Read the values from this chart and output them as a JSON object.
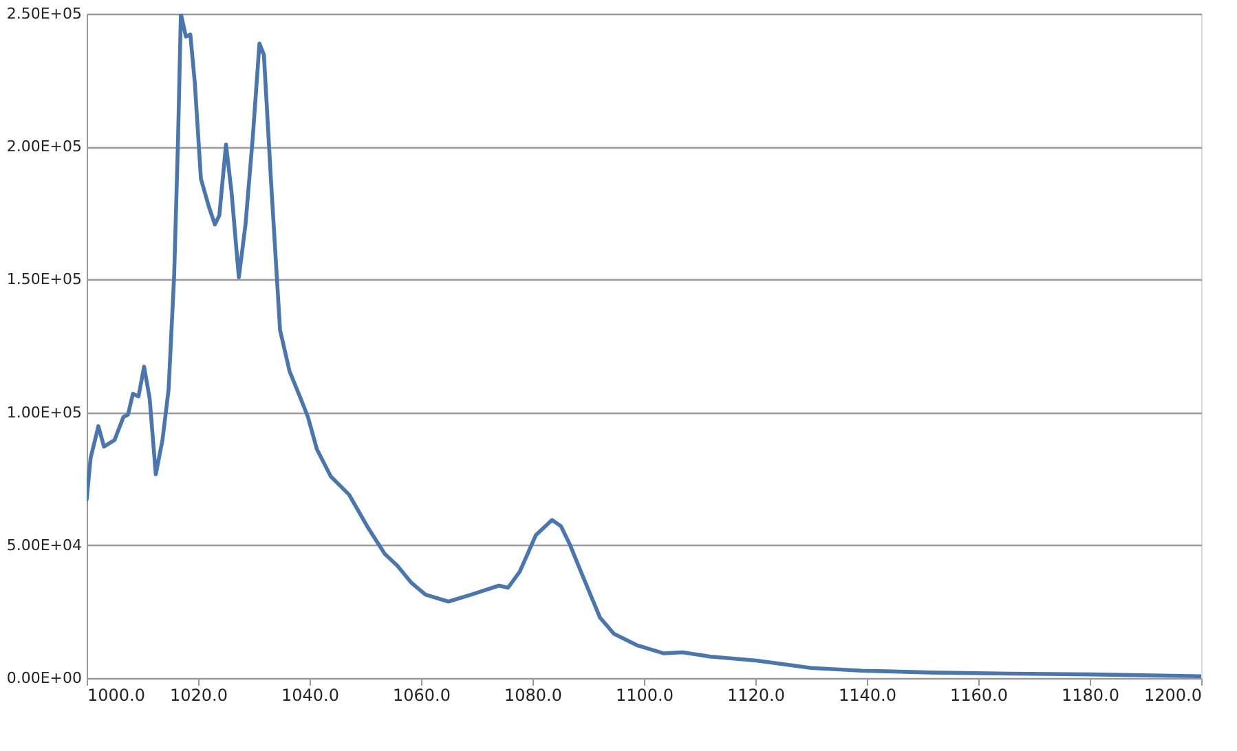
{
  "chart_data": {
    "type": "line",
    "x": [
      1000,
      1000.7,
      1002.1,
      1003.1,
      1005,
      1006.6,
      1007.4,
      1008.3,
      1009.3,
      1010.3,
      1011.3,
      1012.4,
      1013.6,
      1014.7,
      1015.7,
      1016.4,
      1016.9,
      1017.8,
      1018.6,
      1019.4,
      1020.5,
      1021.9,
      1023,
      1023.8,
      1025,
      1026,
      1027.3,
      1028.5,
      1029.8,
      1031,
      1031.8,
      1033.1,
      1034.7,
      1036.4,
      1038.4,
      1039.7,
      1041.3,
      1043.8,
      1047.1,
      1050.4,
      1053.5,
      1055.8,
      1058.3,
      1060.8,
      1064.9,
      1069,
      1074,
      1075.6,
      1077.7,
      1080.6,
      1083.5,
      1085.1,
      1086.7,
      1088.7,
      1092.1,
      1094.6,
      1098.7,
      1103.6,
      1106.9,
      1111.9,
      1120.2,
      1130,
      1139.1,
      1151.5,
      1165.5,
      1180.3,
      1200
    ],
    "series": [
      {
        "color": "#4a76b0",
        "values": [
          67200,
          82800,
          94800,
          87100,
          89600,
          98300,
          99100,
          107000,
          106000,
          117200,
          105200,
          76700,
          89600,
          108600,
          151700,
          203400,
          250000,
          241400,
          242200,
          224100,
          187900,
          177600,
          170700,
          174100,
          200800,
          182700,
          150800,
          170700,
          203400,
          238800,
          234500,
          186200,
          131000,
          115500,
          105200,
          98300,
          86200,
          75900,
          69000,
          56900,
          46700,
          42200,
          35800,
          31400,
          28800,
          31400,
          34800,
          34000,
          40000,
          53800,
          59500,
          57200,
          50300,
          40000,
          22800,
          16700,
          12400,
          9300,
          9700,
          8100,
          6600,
          3800,
          2800,
          2100,
          1700,
          1400,
          700
        ]
      }
    ],
    "xlim": [
      1000,
      1200
    ],
    "xticks": [
      {
        "value": 1000,
        "label": "1000.0"
      },
      {
        "value": 1020,
        "label": "1020.0"
      },
      {
        "value": 1040,
        "label": "1040.0"
      },
      {
        "value": 1060,
        "label": "1060.0"
      },
      {
        "value": 1080,
        "label": "1080.0"
      },
      {
        "value": 1100,
        "label": "1100.0"
      },
      {
        "value": 1120,
        "label": "1120.0"
      },
      {
        "value": 1140,
        "label": "1140.0"
      },
      {
        "value": 1160,
        "label": "1160.0"
      },
      {
        "value": 1180,
        "label": "1180.0"
      },
      {
        "value": 1200,
        "label": "1200.0"
      }
    ],
    "ylim": [
      0,
      250000
    ],
    "yticks": [
      {
        "value": 0,
        "label": "0.00E+00"
      },
      {
        "value": 50000,
        "label": "5.00E+04"
      },
      {
        "value": 100000,
        "label": "1.00E+05"
      },
      {
        "value": 150000,
        "label": "1.50E+05"
      },
      {
        "value": 200000,
        "label": "2.00E+05"
      },
      {
        "value": 250000,
        "label": "2.50E+05"
      }
    ],
    "grid": "y",
    "line_style": "solid",
    "marker": "none"
  }
}
